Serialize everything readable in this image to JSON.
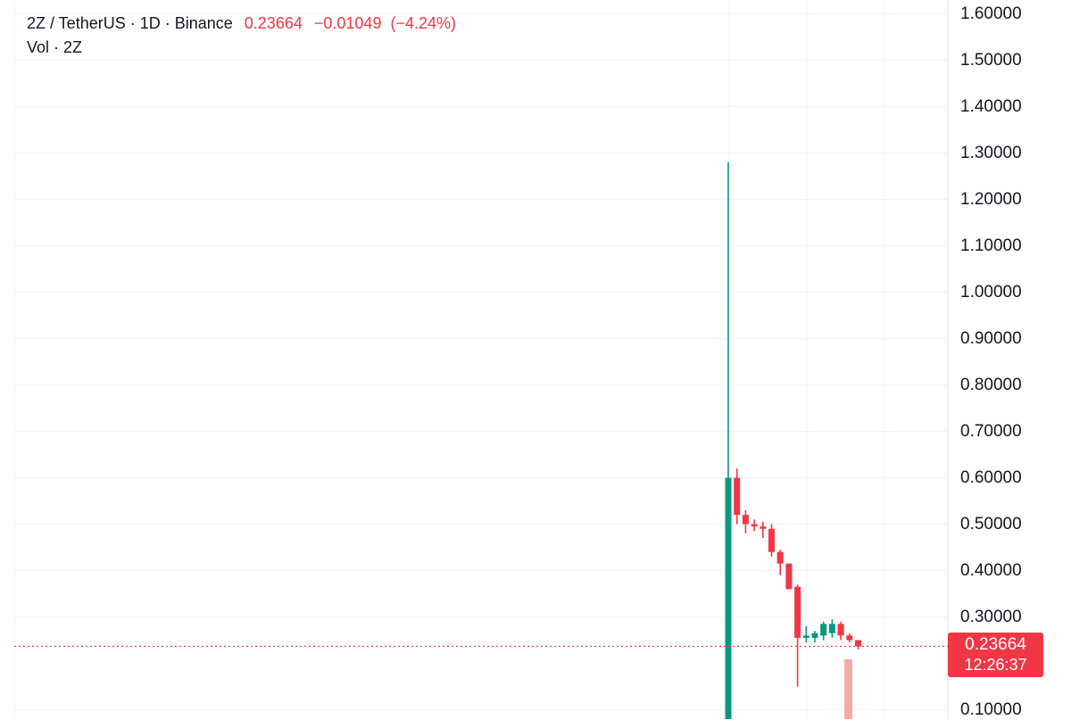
{
  "header": {
    "symbol": "2Z / TetherUS · 1D · Binance",
    "last": "0.23664",
    "change": "−0.01049",
    "change_pct": "(−4.24%)",
    "volume_label": "Vol · 2Z"
  },
  "price_tag": {
    "price": "0.23664",
    "countdown": "12:26:37"
  },
  "colors": {
    "up": "#089981",
    "down": "#f23645",
    "volume_down": "#f7a9a7",
    "grid": "#f0f3fa"
  },
  "chart_data": {
    "type": "candlestick",
    "interval": "1D",
    "exchange": "Binance",
    "symbol": "2Z / TetherUS",
    "last_price": 0.23664,
    "y_ticks": [
      "1.60000",
      "1.50000",
      "1.40000",
      "1.30000",
      "1.20000",
      "1.10000",
      "1.00000",
      "0.90000",
      "0.80000",
      "0.70000",
      "0.60000",
      "0.50000",
      "0.40000",
      "0.30000",
      "0.10000"
    ],
    "ylim": [
      0.1,
      1.6
    ],
    "candles": [
      {
        "o": 0.01,
        "h": 1.28,
        "l": 0.01,
        "c": 0.6
      },
      {
        "o": 0.6,
        "h": 0.62,
        "l": 0.5,
        "c": 0.52
      },
      {
        "o": 0.52,
        "h": 0.53,
        "l": 0.48,
        "c": 0.5
      },
      {
        "o": 0.5,
        "h": 0.51,
        "l": 0.485,
        "c": 0.495
      },
      {
        "o": 0.495,
        "h": 0.505,
        "l": 0.47,
        "c": 0.49
      },
      {
        "o": 0.49,
        "h": 0.5,
        "l": 0.43,
        "c": 0.44
      },
      {
        "o": 0.44,
        "h": 0.445,
        "l": 0.39,
        "c": 0.415
      },
      {
        "o": 0.415,
        "h": 0.415,
        "l": 0.36,
        "c": 0.36
      },
      {
        "o": 0.365,
        "h": 0.37,
        "l": 0.15,
        "c": 0.255
      },
      {
        "o": 0.255,
        "h": 0.28,
        "l": 0.245,
        "c": 0.26
      },
      {
        "o": 0.255,
        "h": 0.27,
        "l": 0.245,
        "c": 0.265
      },
      {
        "o": 0.26,
        "h": 0.29,
        "l": 0.25,
        "c": 0.285
      },
      {
        "o": 0.265,
        "h": 0.295,
        "l": 0.255,
        "c": 0.285
      },
      {
        "o": 0.285,
        "h": 0.29,
        "l": 0.25,
        "c": 0.26
      },
      {
        "o": 0.26,
        "h": 0.265,
        "l": 0.245,
        "c": 0.25
      },
      {
        "o": 0.25,
        "h": 0.25,
        "l": 0.23,
        "c": 0.23664
      }
    ]
  }
}
